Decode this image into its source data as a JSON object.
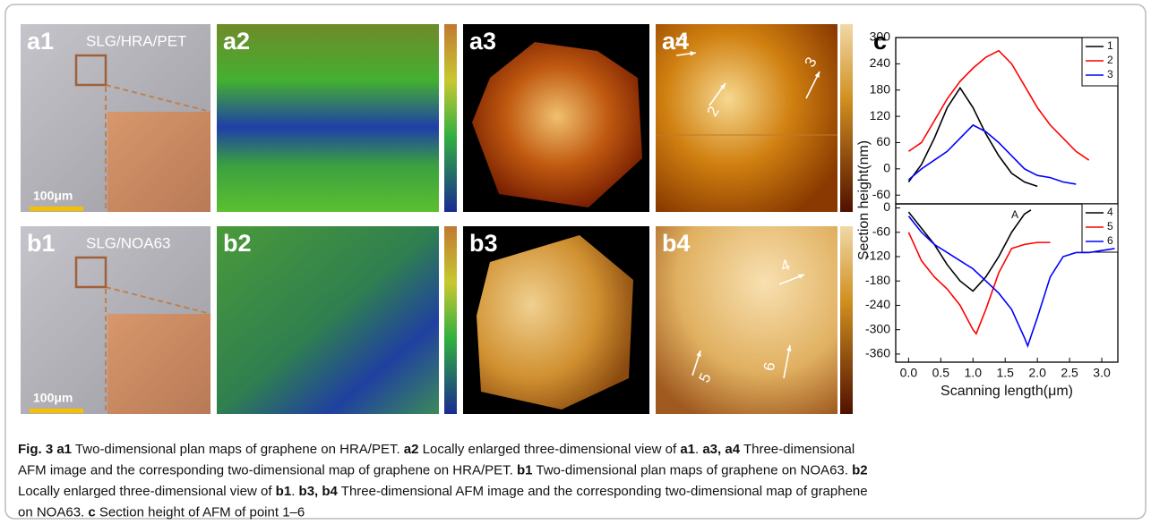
{
  "panels": [
    {
      "label": "a1",
      "text": "SLG/HRA/PET",
      "scale": "100μm"
    },
    {
      "label": "a2"
    },
    {
      "label": "a3"
    },
    {
      "label": "a4"
    },
    {
      "label": "b1",
      "text": "SLG/NOA63",
      "scale": "100μm"
    },
    {
      "label": "b2"
    },
    {
      "label": "b3"
    },
    {
      "label": "b4"
    }
  ],
  "arrows": [
    "1",
    "2",
    "3",
    "4",
    "5",
    "6"
  ],
  "chart_label": "c",
  "chart_data": [
    {
      "type": "line",
      "y_label": "Section height(nm)",
      "xlim": [
        -0.2,
        3.25
      ],
      "ylim": [
        -80,
        300
      ],
      "yticks": [
        -60,
        0,
        60,
        120,
        180,
        240,
        300
      ],
      "series": [
        {
          "name": "1",
          "color": "#000000",
          "x": [
            0,
            0.2,
            0.4,
            0.6,
            0.8,
            1.0,
            1.2,
            1.4,
            1.6,
            1.8,
            2.0
          ],
          "values": [
            -30,
            10,
            70,
            140,
            185,
            140,
            80,
            30,
            -10,
            -30,
            -40
          ]
        },
        {
          "name": "2",
          "color": "#ff0000",
          "x": [
            0,
            0.2,
            0.4,
            0.6,
            0.8,
            1.0,
            1.2,
            1.4,
            1.6,
            1.8,
            2.0,
            2.2,
            2.4,
            2.6,
            2.8
          ],
          "values": [
            40,
            60,
            110,
            160,
            200,
            230,
            255,
            270,
            240,
            190,
            140,
            100,
            70,
            40,
            20
          ]
        },
        {
          "name": "3",
          "color": "#0000ff",
          "x": [
            0,
            0.2,
            0.4,
            0.6,
            0.8,
            1.0,
            1.2,
            1.4,
            1.6,
            1.8,
            2.0,
            2.2,
            2.4,
            2.6
          ],
          "values": [
            -25,
            0,
            20,
            40,
            70,
            100,
            85,
            60,
            30,
            0,
            -15,
            -20,
            -30,
            -35
          ]
        }
      ]
    },
    {
      "type": "line",
      "x_label": "Scanning length(μm)",
      "annotation": "A",
      "xlim": [
        -0.2,
        3.25
      ],
      "ylim": [
        -380,
        10
      ],
      "xticks": [
        {
          "value": 0,
          "label": "0.0"
        },
        0.5,
        {
          "value": 1,
          "label": "1.0"
        },
        1.5,
        {
          "value": 2,
          "label": "2.0"
        },
        2.5,
        {
          "value": 3,
          "label": "3.0"
        }
      ],
      "yticks": [
        0,
        -60,
        -120,
        -180,
        -240,
        -300,
        -360
      ],
      "series": [
        {
          "name": "4",
          "color": "#000000",
          "x": [
            0,
            0.2,
            0.4,
            0.6,
            0.8,
            1.0,
            1.2,
            1.4,
            1.6,
            1.8,
            1.9
          ],
          "values": [
            -10,
            -50,
            -90,
            -140,
            -180,
            -205,
            -170,
            -120,
            -60,
            -15,
            -5
          ]
        },
        {
          "name": "5",
          "color": "#ff0000",
          "x": [
            0,
            0.2,
            0.4,
            0.6,
            0.8,
            1.0,
            1.05,
            1.2,
            1.4,
            1.6,
            1.8,
            2.0,
            2.2
          ],
          "values": [
            -60,
            -130,
            -170,
            -200,
            -240,
            -300,
            -310,
            -250,
            -160,
            -100,
            -90,
            -85,
            -85
          ]
        },
        {
          "name": "6",
          "color": "#0000ff",
          "x": [
            0,
            0.2,
            0.4,
            0.6,
            0.8,
            1.0,
            1.2,
            1.4,
            1.6,
            1.8,
            1.85,
            2.0,
            2.2,
            2.4,
            2.6,
            2.8,
            3.0,
            3.2
          ],
          "values": [
            -20,
            -60,
            -90,
            -110,
            -130,
            -150,
            -180,
            -210,
            -250,
            -320,
            -340,
            -270,
            -170,
            -120,
            -110,
            -110,
            -105,
            -100
          ]
        }
      ]
    }
  ],
  "caption": [
    [
      {
        "text": "Fig. 3 a1",
        "bold": true
      },
      {
        "text": " Two-dimensional plan maps of graphene on HRA/PET. "
      },
      {
        "text": "a2",
        "bold": true
      },
      {
        "text": " Locally enlarged three-dimensional view of "
      },
      {
        "text": "a1",
        "bold": true
      },
      {
        "text": ". "
      },
      {
        "text": "a3, a4",
        "bold": true
      },
      {
        "text": " Three-dimensional"
      }
    ],
    [
      {
        "text": "AFM image and the corresponding two-dimensional map of graphene on HRA/PET. "
      },
      {
        "text": "b1",
        "bold": true
      },
      {
        "text": " Two-dimensional plan maps of graphene on NOA63. "
      },
      {
        "text": "b2",
        "bold": true
      }
    ],
    [
      {
        "text": "Locally enlarged three-dimensional view of "
      },
      {
        "text": "b1",
        "bold": true
      },
      {
        "text": ". "
      },
      {
        "text": "b3, b4",
        "bold": true
      },
      {
        "text": " Three-dimensional AFM image and the corresponding two-dimensional map of graphene"
      }
    ],
    [
      {
        "text": "on NOA63. "
      },
      {
        "text": "c",
        "bold": true
      },
      {
        "text": " Section height of AFM of point 1–6"
      }
    ]
  ]
}
